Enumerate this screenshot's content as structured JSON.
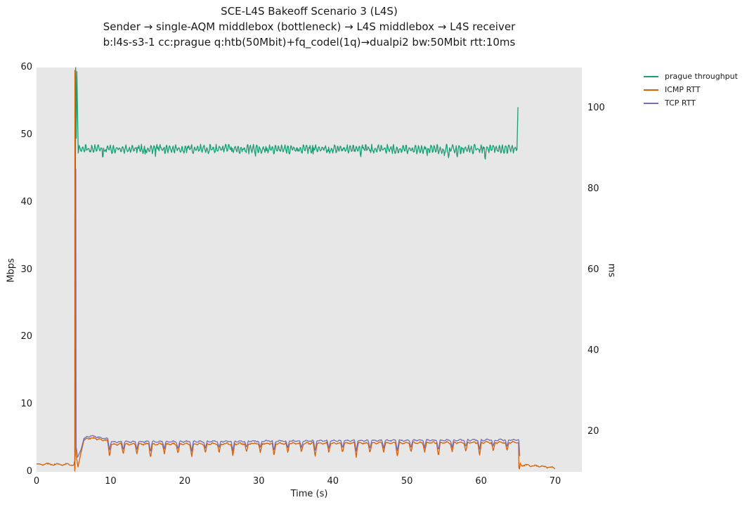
{
  "chart_data": {
    "type": "line",
    "title": "SCE-L4S Bakeoff Scenario 3 (L4S)",
    "subtitle1": "Sender → single-AQM middlebox (bottleneck) → L4S middlebox → L4S receiver",
    "subtitle2": "b:l4s-s3-1 cc:prague q:htb(50Mbit)+fq_codel(1q)→dualpi2 bw:50Mbit rtt:10ms",
    "xlabel": "Time (s)",
    "xlim": [
      0,
      73.6
    ],
    "x_ticks": [
      0,
      10,
      20,
      30,
      40,
      50,
      60,
      70
    ],
    "left_axis": {
      "label": "Mbps",
      "lim": [
        0,
        60
      ],
      "ticks": [
        0,
        10,
        20,
        30,
        40,
        50,
        60
      ]
    },
    "right_axis": {
      "label": "ms",
      "lim": [
        10,
        110
      ],
      "ticks": [
        20,
        40,
        60,
        80,
        100
      ]
    },
    "plot_bg": "#e7e7e7",
    "grid": false,
    "legend_position": "outside-top-right",
    "series": [
      {
        "name": "prague throughput",
        "color": "#1b9e77",
        "axis": "left",
        "unit": "Mbps",
        "summary": "starts t=5.2s, spike to 60 Mbps (and 59.4), steady oscillation 47.2-48.7 Mbps until t=64.9s, final spike to 54.1 Mbps, ends",
        "parts": [
          {
            "type": "path",
            "points": [
              [
                5.18,
                0.3
              ],
              [
                5.28,
                60.0
              ],
              [
                5.36,
                49.5
              ],
              [
                5.44,
                59.4
              ],
              [
                5.62,
                47.4
              ]
            ]
          },
          {
            "type": "band",
            "t0": 5.62,
            "t1": 64.85,
            "base": [
              [
                5.62,
                47.9
              ],
              [
                64.85,
                47.9
              ]
            ],
            "amp": 0.75,
            "period": 0.42,
            "seed": 3,
            "spikeChance": 0.05,
            "spikeDepth": 0.8
          },
          {
            "type": "path",
            "points": [
              [
                64.85,
                47.8
              ],
              [
                64.98,
                54.1
              ]
            ]
          }
        ]
      },
      {
        "name": "ICMP RTT",
        "color": "#d95f02",
        "axis": "right",
        "unit": "ms",
        "summary": "baseline ~11.9ms for t=0-5s, spike to ~109ms at t=5.2s, dip to ~11ms, steady 15-18.5ms with periodic dips until t=65s, drop to ~11.5ms baseline until t=70s",
        "parts": [
          {
            "type": "band",
            "t0": 0,
            "t1": 5.05,
            "base": [
              [
                0,
                11.9
              ],
              [
                5.05,
                11.8
              ]
            ],
            "amp": 0.3,
            "period": 1.3,
            "seed": 7
          },
          {
            "type": "path",
            "points": [
              [
                5.05,
                11.8
              ],
              [
                5.13,
                12.6
              ],
              [
                5.16,
                10.2
              ],
              [
                5.18,
                109.3
              ],
              [
                5.32,
                14.3
              ],
              [
                5.6,
                11.2
              ],
              [
                6.0,
                14.8
              ],
              [
                6.4,
                17.8
              ]
            ]
          },
          {
            "type": "band",
            "t0": 6.4,
            "t1": 65.05,
            "base": [
              [
                6.4,
                17.8
              ],
              [
                7.3,
                18.4
              ],
              [
                9.5,
                17.7
              ],
              [
                10.2,
                16.8
              ],
              [
                30,
                17.0
              ],
              [
                64.4,
                17.3
              ],
              [
                65.05,
                17.3
              ]
            ],
            "amp": 0.3,
            "period": 0.9,
            "seed": 11,
            "scallop": {
              "start": 9.6,
              "period": 1.85,
              "width": 0.5,
              "depth": 2.3,
              "deepFactor": 1.45
            }
          },
          {
            "type": "path",
            "points": [
              [
                65.05,
                17.2
              ],
              [
                65.1,
                11.0
              ],
              [
                65.18,
                10.7
              ],
              [
                65.3,
                12.2
              ]
            ]
          },
          {
            "type": "band",
            "t0": 65.3,
            "t1": 70.0,
            "base": [
              [
                65.3,
                11.7
              ],
              [
                68.5,
                11.3
              ],
              [
                70,
                11.0
              ]
            ],
            "amp": 0.3,
            "period": 1.1,
            "seed": 13
          }
        ]
      },
      {
        "name": "TCP RTT",
        "color": "#7570b3",
        "axis": "right",
        "unit": "ms",
        "summary": "starts t=5.3s with spike to ~85ms, steady 15.5-19ms riding slightly above ICMP RTT with periodic dips, ends t=65.2s at ~14ms",
        "parts": [
          {
            "type": "path",
            "points": [
              [
                5.3,
                85.0
              ],
              [
                5.34,
                16.2
              ],
              [
                5.55,
                13.6
              ],
              [
                6.0,
                15.5
              ],
              [
                6.4,
                18.3
              ]
            ]
          },
          {
            "type": "band",
            "t0": 6.4,
            "t1": 65.1,
            "base": [
              [
                6.4,
                18.3
              ],
              [
                7.3,
                18.9
              ],
              [
                9.5,
                18.2
              ],
              [
                10.2,
                17.4
              ],
              [
                30,
                17.6
              ],
              [
                64.4,
                17.9
              ],
              [
                65.1,
                17.9
              ]
            ],
            "amp": 0.25,
            "period": 0.9,
            "seed": 17,
            "scallop": {
              "start": 9.62,
              "period": 1.85,
              "width": 0.45,
              "depth": 1.8,
              "deepFactor": 1.4
            }
          },
          {
            "type": "path",
            "points": [
              [
                65.1,
                17.8
              ],
              [
                65.22,
                13.9
              ]
            ]
          }
        ]
      }
    ]
  }
}
